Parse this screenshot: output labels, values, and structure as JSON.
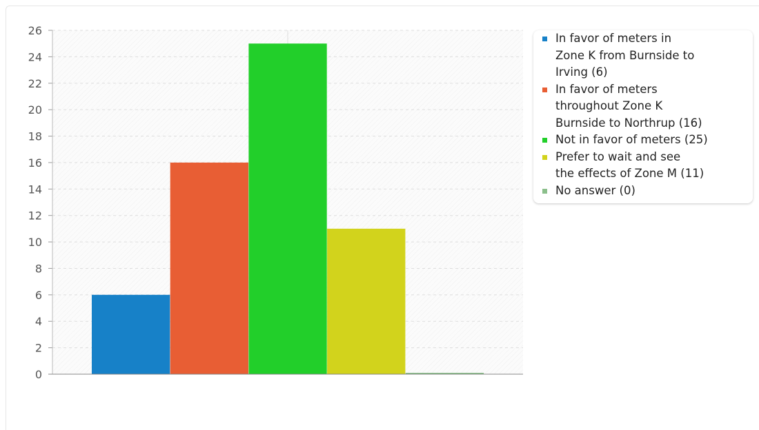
{
  "chart_data": {
    "type": "bar",
    "categories": [
      "In favor of meters in Zone K from Burnside to Irving (6)",
      "In favor of meters throughout Zone K Burnside to Northrup (16)",
      "Not in favor of meters (25)",
      "Prefer to wait and see the effects of Zone M (11)",
      "No answer (0)"
    ],
    "values": [
      6,
      16,
      25,
      11,
      0
    ],
    "colors": [
      "#1781c8",
      "#e85e34",
      "#22cf2a",
      "#d2d31c",
      "#8bbf8b"
    ],
    "ylim": [
      0,
      26
    ],
    "y_ticks": [
      0,
      2,
      4,
      6,
      8,
      10,
      12,
      14,
      16,
      18,
      20,
      22,
      24,
      26
    ],
    "grid": true,
    "legend_position": "right",
    "title": "",
    "xlabel": "",
    "ylabel": ""
  },
  "legend": {
    "items": [
      {
        "lines": [
          "In favor of meters in",
          "Zone K from Burnside to",
          "Irving (6)"
        ],
        "color": "#1781c8"
      },
      {
        "lines": [
          "In favor of meters",
          "throughout Zone K",
          "Burnside to Northrup (16)"
        ],
        "color": "#e85e34"
      },
      {
        "lines": [
          "Not in favor of meters (25)"
        ],
        "color": "#22cf2a"
      },
      {
        "lines": [
          "Prefer to wait and see",
          "the effects of Zone M (11)"
        ],
        "color": "#d2d31c"
      },
      {
        "lines": [
          "No answer (0)"
        ],
        "color": "#8bbf8b"
      }
    ]
  }
}
